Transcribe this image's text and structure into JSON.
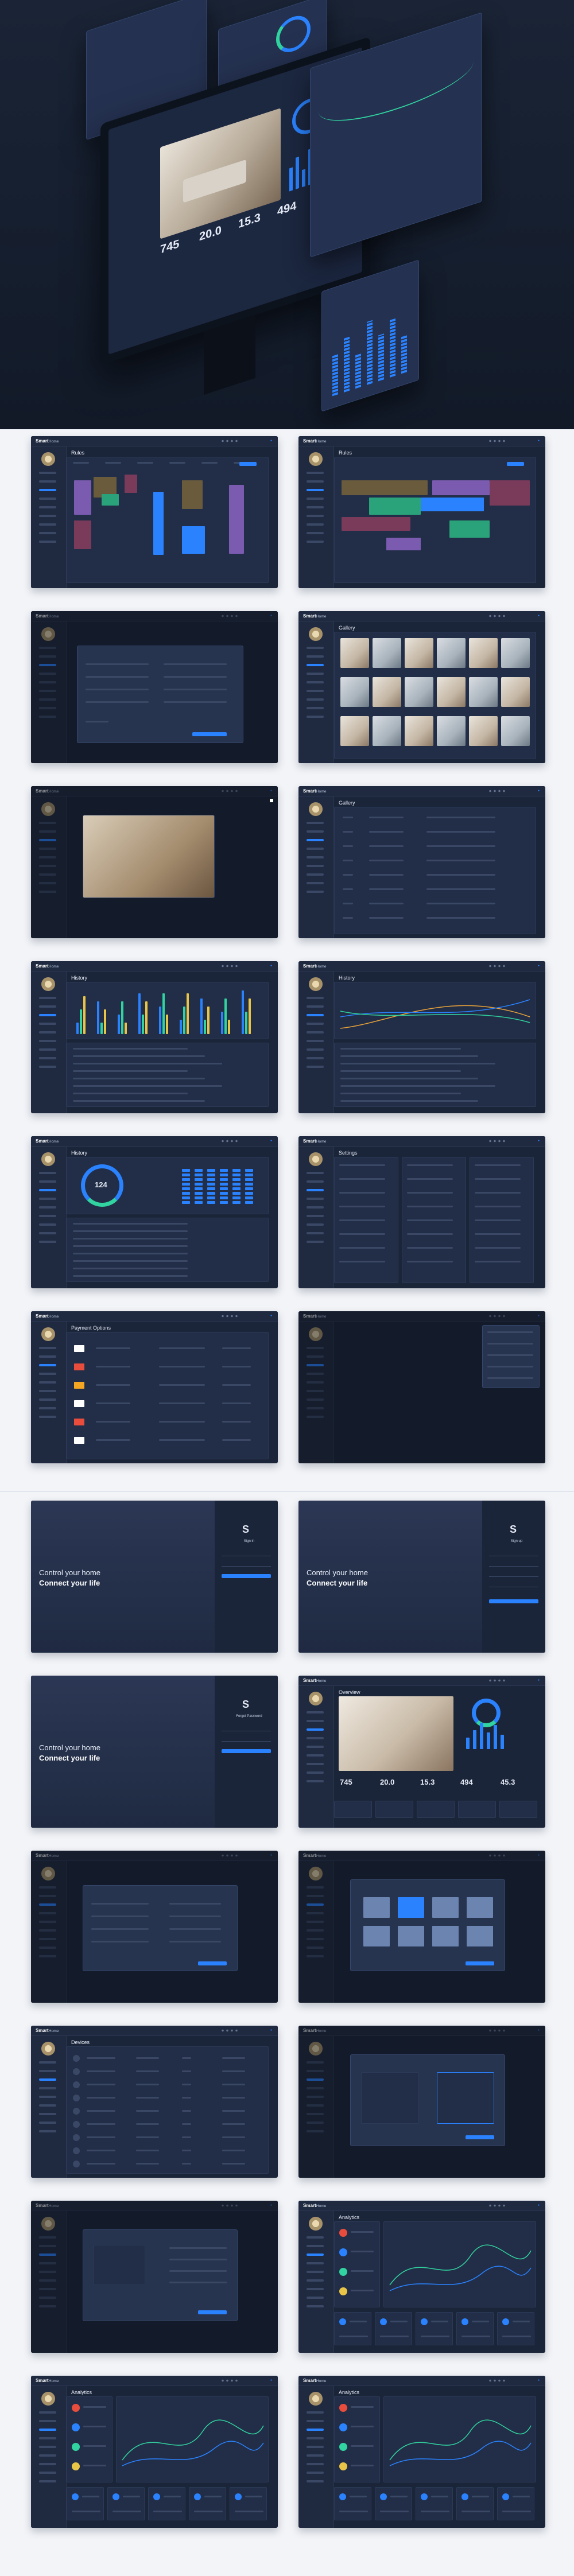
{
  "hero": {
    "stats": [
      "745",
      "20.0",
      "15.3",
      "494"
    ]
  },
  "brand": {
    "bold": "Smart",
    "light": "Home"
  },
  "screens": [
    {
      "title": "Rules"
    },
    {
      "title": "Rules"
    },
    {
      "title": ""
    },
    {
      "title": "Gallery"
    },
    {
      "title": ""
    },
    {
      "title": "Gallery"
    },
    {
      "title": "History"
    },
    {
      "title": "History"
    },
    {
      "title": "History",
      "ring_value": "124"
    },
    {
      "title": "Settings"
    },
    {
      "title": "Payment Options"
    },
    {
      "title": ""
    }
  ],
  "login_screens": [
    {
      "line1": "Control your home",
      "line2": "Connect your life",
      "form_title": "Sign in"
    },
    {
      "line1": "Control your home",
      "line2": "Connect your life",
      "form_title": "Sign up"
    },
    {
      "line1": "Control your home",
      "line2": "Connect your life",
      "form_title": "Forgot Password"
    }
  ],
  "overview": {
    "title": "Overview",
    "stats": [
      "745",
      "20.0",
      "15.3",
      "494",
      "45.3"
    ]
  },
  "more_screens": [
    {
      "title": ""
    },
    {
      "title": ""
    },
    {
      "title": "Devices"
    },
    {
      "title": ""
    },
    {
      "title": ""
    },
    {
      "title": "Analytics"
    },
    {
      "title": "Analytics"
    },
    {
      "title": "Analytics"
    }
  ],
  "logo_letter": "S",
  "colors": {
    "accent": "#2a82ff",
    "green": "#31d3a0",
    "bg_dark": "#1b2539",
    "page": "#f2f4f8"
  }
}
